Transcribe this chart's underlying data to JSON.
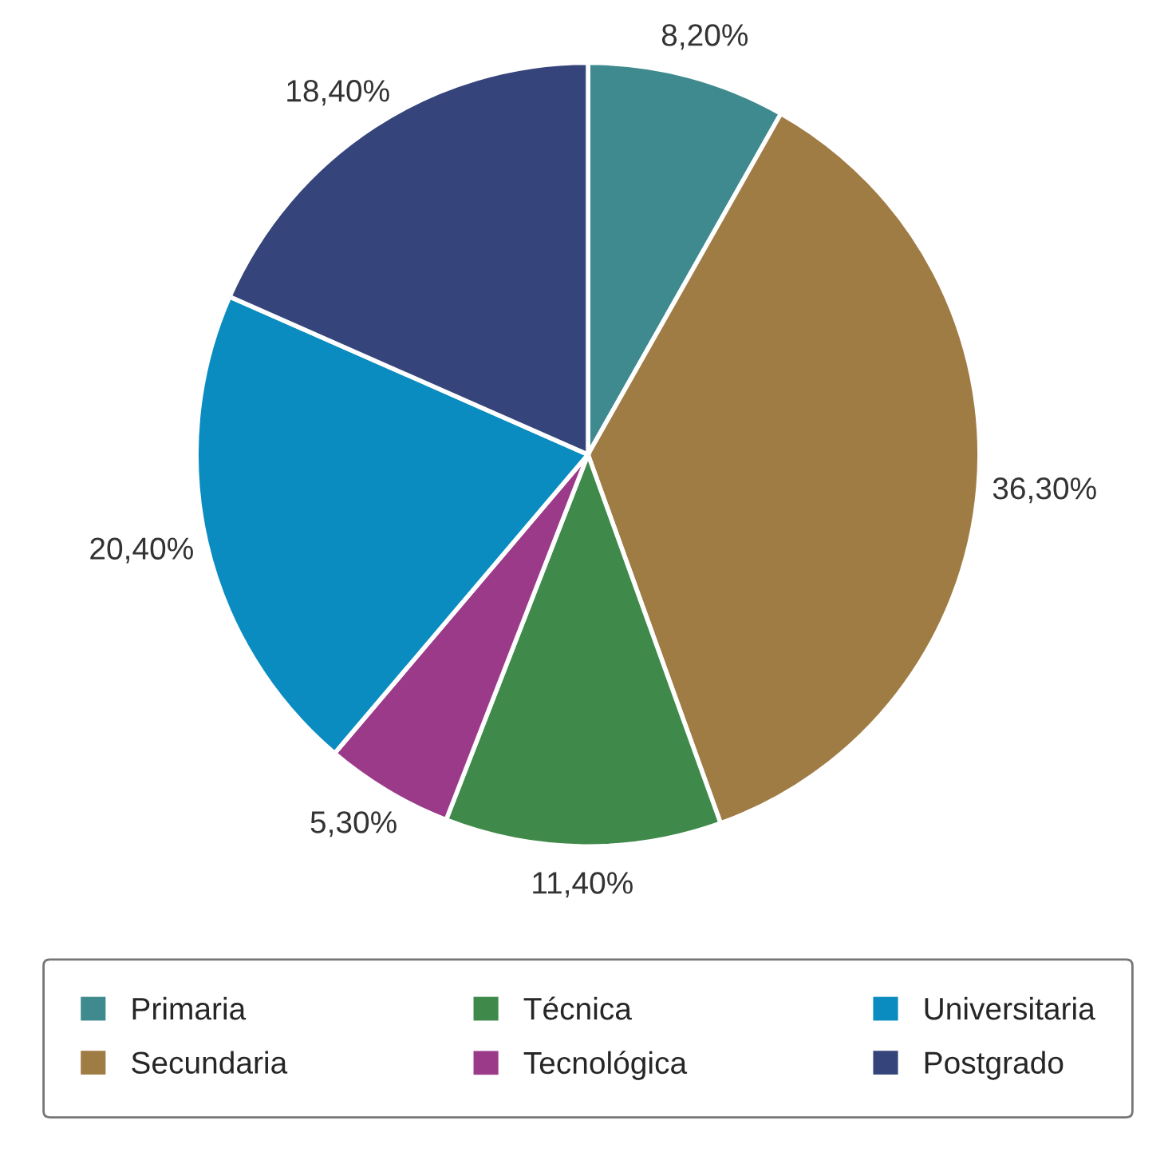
{
  "chart_data": {
    "type": "pie",
    "categories": [
      "Primaria",
      "Secundaria",
      "Técnica",
      "Tecnológica",
      "Universitaria",
      "Postgrado"
    ],
    "values": [
      8.2,
      36.3,
      11.4,
      5.3,
      20.4,
      18.4
    ],
    "value_labels": [
      "8,20%",
      "36,30%",
      "11,40%",
      "5,30%",
      "20,40%",
      "18,40%"
    ],
    "colors": [
      "#3f8a8e",
      "#a07c45",
      "#3f8a4a",
      "#9c3a8a",
      "#0a8cc0",
      "#35447a"
    ],
    "legend": "bottom"
  }
}
